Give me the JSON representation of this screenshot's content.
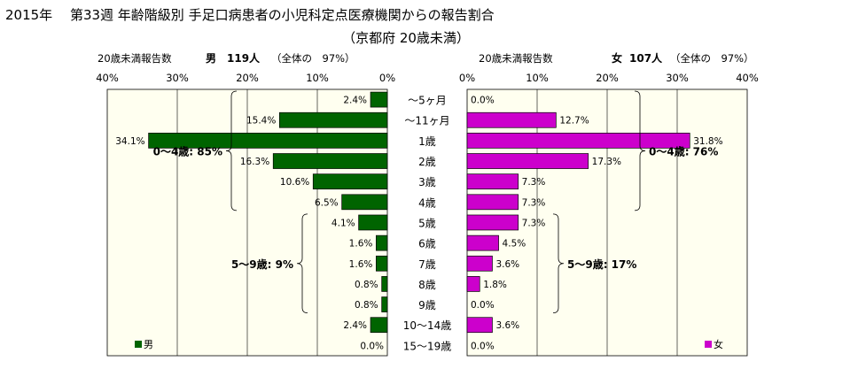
{
  "chart_data": {
    "type": "bar",
    "title": "2015年　 第33週 年齢階級別 手足口病患者の小児科定点医療機関からの報告割合",
    "subtitle": "（京都府 20歳未満）",
    "categories": [
      "～5ヶ月",
      "～11ヶ月",
      "1歳",
      "2歳",
      "3歳",
      "4歳",
      "5歳",
      "6歳",
      "7歳",
      "8歳",
      "9歳",
      "10～14歳",
      "15～19歳"
    ],
    "unit": "%",
    "xlim": [
      0,
      40
    ],
    "ticks": [
      "0%",
      "10%",
      "20%",
      "30%",
      "40%"
    ],
    "grid": true,
    "series": [
      {
        "name": "男",
        "header_label": "20歳未満報告数",
        "header_name": "男",
        "header_count": "119人",
        "header_note": "（全体の　97%）",
        "color": "#006400",
        "direction": "left",
        "values": [
          2.4,
          15.4,
          34.1,
          16.3,
          10.6,
          6.5,
          4.1,
          1.6,
          1.6,
          0.8,
          0.8,
          2.4,
          0.0
        ],
        "labels": [
          "2.4%",
          "15.4%",
          "34.1%",
          "16.3%",
          "10.6%",
          "6.5%",
          "4.1%",
          "1.6%",
          "1.6%",
          "0.8%",
          "0.8%",
          "2.4%",
          "0.0%"
        ],
        "groups": [
          {
            "label": "0～4歳: 85%",
            "from": 0,
            "to": 5
          },
          {
            "label": "5～9歳: 9%",
            "from": 6,
            "to": 10
          }
        ],
        "legend": "男"
      },
      {
        "name": "女",
        "header_label": "20歳未満報告数",
        "header_name": "女",
        "header_count": "107人",
        "header_note": "（全体の　97%）",
        "color": "#cc00cc",
        "direction": "right",
        "values": [
          0.0,
          12.7,
          31.8,
          17.3,
          7.3,
          7.3,
          7.3,
          4.5,
          3.6,
          1.8,
          0.0,
          3.6,
          0.0
        ],
        "labels": [
          "0.0%",
          "12.7%",
          "31.8%",
          "17.3%",
          "7.3%",
          "7.3%",
          "7.3%",
          "4.5%",
          "3.6%",
          "1.8%",
          "0.0%",
          "3.6%",
          "0.0%"
        ],
        "groups": [
          {
            "label": "0～4歳: 76%",
            "from": 0,
            "to": 5
          },
          {
            "label": "5～9歳: 17%",
            "from": 6,
            "to": 10
          }
        ],
        "legend": "女"
      }
    ]
  }
}
